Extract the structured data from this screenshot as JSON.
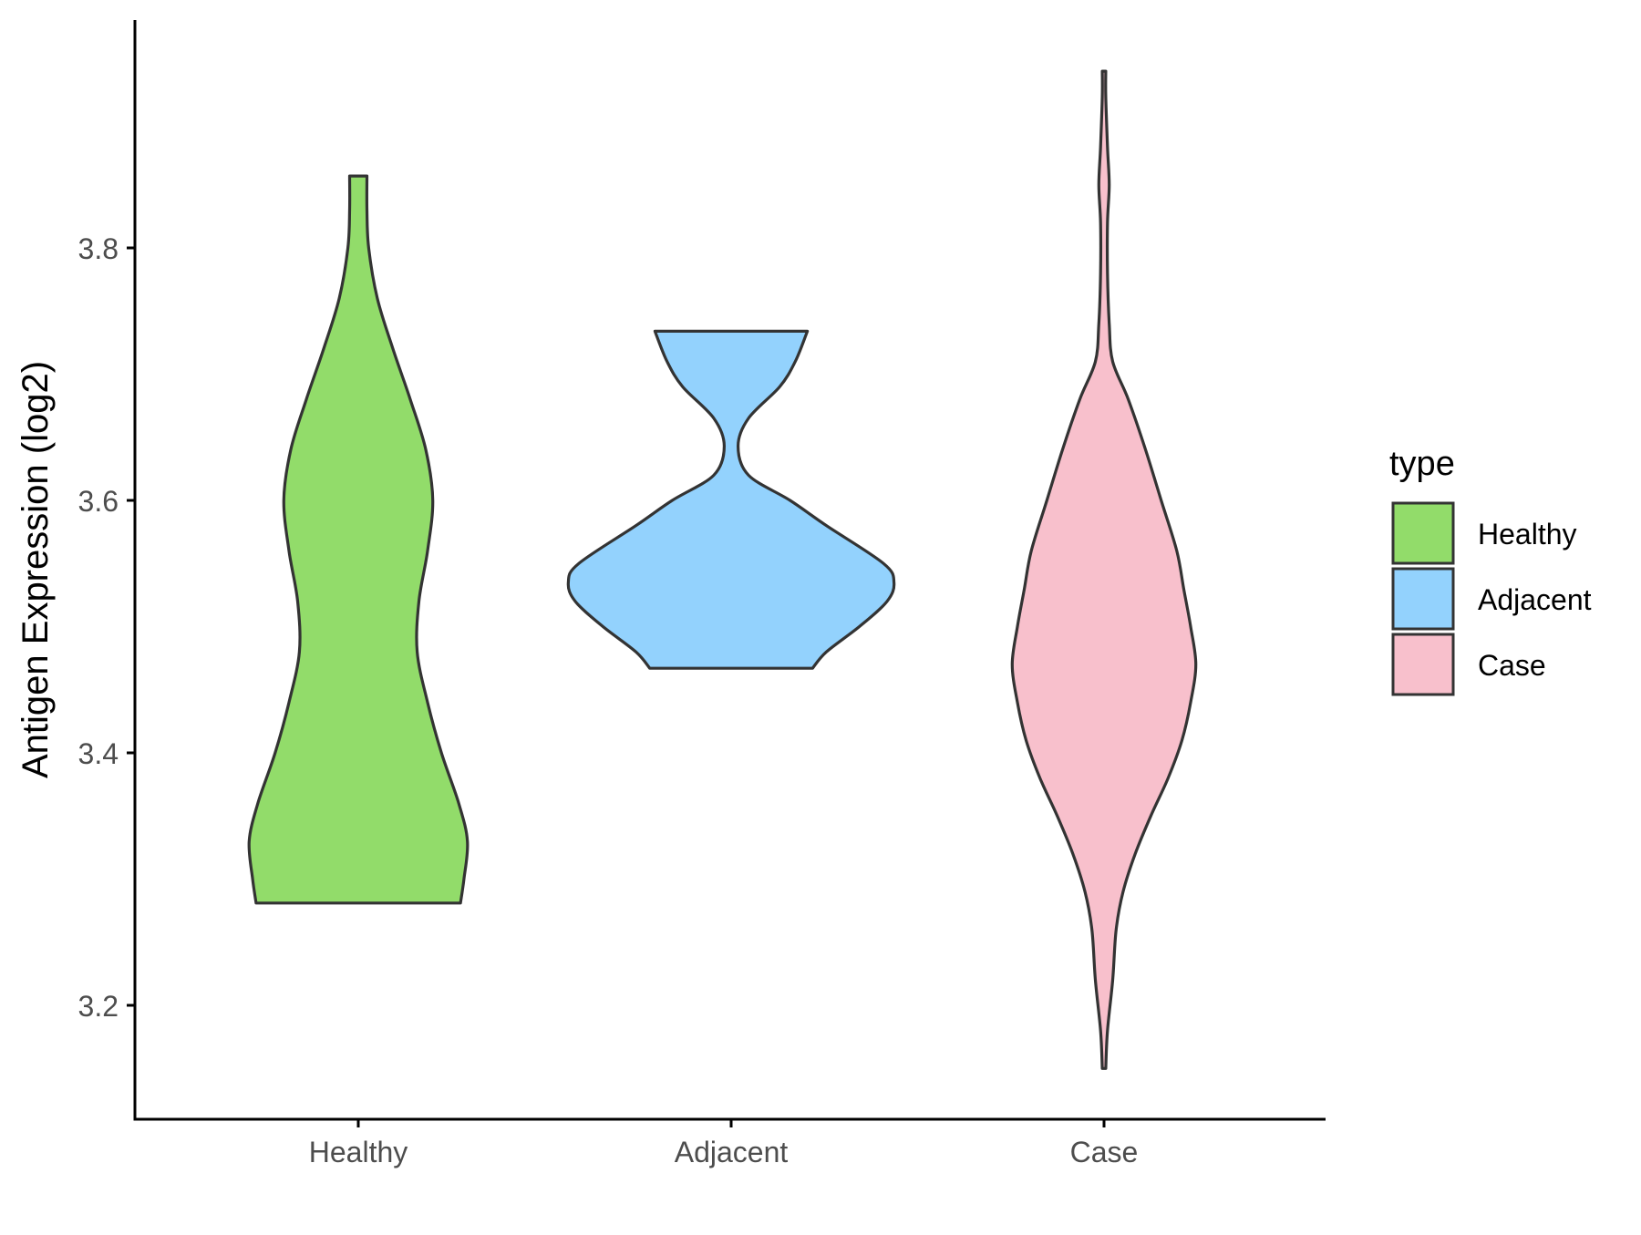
{
  "chart_data": {
    "type": "violin",
    "title": "",
    "xlabel": "",
    "ylabel": "Antigen Expression (log2)",
    "categories": [
      "Healthy",
      "Adjacent",
      "Case"
    ],
    "yticks": [
      3.2,
      3.4,
      3.6,
      3.8
    ],
    "ytick_labels": [
      "3.2",
      "3.4",
      "3.6",
      "3.8"
    ],
    "ylim": [
      3.113,
      3.982
    ],
    "grid": false,
    "legend": {
      "title": "type",
      "position": "right",
      "entries": [
        "Healthy",
        "Adjacent",
        "Case"
      ]
    },
    "colors": {
      "Healthy": "#92dc6a",
      "Adjacent": "#93d2fd",
      "Case": "#f8c0cc",
      "outline": "#333333",
      "axis": "#000000"
    },
    "series": [
      {
        "category": "Healthy",
        "min": 3.281,
        "max": 3.857,
        "density_profile": [
          [
            3.281,
            0.59
          ],
          [
            3.3,
            0.61
          ],
          [
            3.33,
            0.63
          ],
          [
            3.36,
            0.58
          ],
          [
            3.4,
            0.48
          ],
          [
            3.44,
            0.4
          ],
          [
            3.48,
            0.34
          ],
          [
            3.52,
            0.35
          ],
          [
            3.56,
            0.4
          ],
          [
            3.6,
            0.43
          ],
          [
            3.64,
            0.39
          ],
          [
            3.68,
            0.3
          ],
          [
            3.72,
            0.2
          ],
          [
            3.76,
            0.11
          ],
          [
            3.8,
            0.06
          ],
          [
            3.83,
            0.05
          ],
          [
            3.857,
            0.05
          ]
        ]
      },
      {
        "category": "Adjacent",
        "min": 3.467,
        "max": 3.734,
        "density_profile": [
          [
            3.467,
            0.47
          ],
          [
            3.48,
            0.55
          ],
          [
            3.5,
            0.74
          ],
          [
            3.52,
            0.9
          ],
          [
            3.535,
            0.94
          ],
          [
            3.55,
            0.88
          ],
          [
            3.58,
            0.55
          ],
          [
            3.6,
            0.34
          ],
          [
            3.62,
            0.1
          ],
          [
            3.643,
            0.04
          ],
          [
            3.665,
            0.1
          ],
          [
            3.69,
            0.28
          ],
          [
            3.71,
            0.37
          ],
          [
            3.734,
            0.44
          ]
        ]
      },
      {
        "category": "Case",
        "min": 3.15,
        "max": 3.94,
        "density_profile": [
          [
            3.15,
            0.01
          ],
          [
            3.18,
            0.02
          ],
          [
            3.22,
            0.05
          ],
          [
            3.26,
            0.07
          ],
          [
            3.29,
            0.11
          ],
          [
            3.32,
            0.18
          ],
          [
            3.35,
            0.27
          ],
          [
            3.38,
            0.37
          ],
          [
            3.41,
            0.45
          ],
          [
            3.44,
            0.5
          ],
          [
            3.47,
            0.53
          ],
          [
            3.5,
            0.5
          ],
          [
            3.53,
            0.46
          ],
          [
            3.56,
            0.42
          ],
          [
            3.6,
            0.33
          ],
          [
            3.64,
            0.24
          ],
          [
            3.68,
            0.14
          ],
          [
            3.71,
            0.05
          ],
          [
            3.74,
            0.03
          ],
          [
            3.78,
            0.02
          ],
          [
            3.82,
            0.02
          ],
          [
            3.85,
            0.03
          ],
          [
            3.88,
            0.02
          ],
          [
            3.92,
            0.01
          ],
          [
            3.94,
            0.01
          ]
        ]
      }
    ]
  }
}
